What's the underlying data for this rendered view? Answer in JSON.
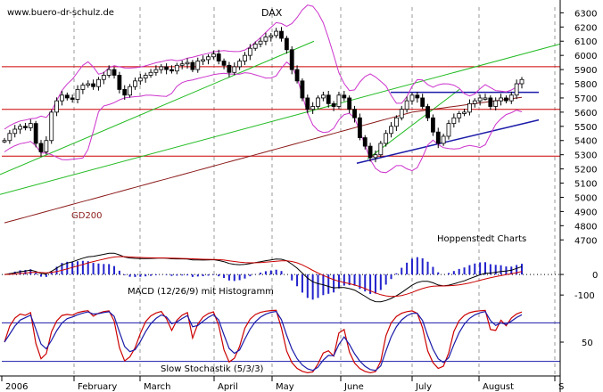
{
  "watermark": "www.buero-dr-schulz.de",
  "chart_data": {
    "type": "line",
    "title": "DAX",
    "source_label": "Hoppenstedt Charts",
    "ma_label": "GD200",
    "grid": true,
    "x_labels": [
      "2006",
      "February",
      "March",
      "April",
      "May",
      "June",
      "July",
      "August",
      "S"
    ],
    "price_panel": {
      "y_ticks": [
        4700,
        4800,
        4900,
        5000,
        5100,
        5200,
        5300,
        5400,
        5500,
        5600,
        5700,
        5800,
        5900,
        6000,
        6100,
        6200,
        6300
      ],
      "ylim": [
        4620,
        6340
      ],
      "horizontal_lines": [
        5920,
        5620,
        5290
      ],
      "series": [
        {
          "name": "Close",
          "color": "#000000",
          "values": [
            5400,
            5450,
            5480,
            5500,
            5490,
            5520,
            5380,
            5320,
            5400,
            5600,
            5680,
            5720,
            5700,
            5690,
            5760,
            5790,
            5800,
            5780,
            5830,
            5860,
            5900,
            5860,
            5760,
            5720,
            5780,
            5820,
            5840,
            5860,
            5880,
            5900,
            5920,
            5900,
            5890,
            5930,
            5940,
            5950,
            5900,
            5960,
            5970,
            5990,
            6010,
            5960,
            5930,
            5880,
            5920,
            5960,
            6000,
            6050,
            6080,
            6100,
            6130,
            6140,
            6170,
            6120,
            6040,
            5900,
            5820,
            5700,
            5620,
            5640,
            5700,
            5720,
            5660,
            5640,
            5720,
            5700,
            5620,
            5560,
            5420,
            5360,
            5280,
            5300,
            5380,
            5450,
            5500,
            5560,
            5620,
            5680,
            5720,
            5700,
            5640,
            5560,
            5460,
            5380,
            5430,
            5520,
            5560,
            5590,
            5600,
            5660,
            5680,
            5700,
            5700,
            5640,
            5680,
            5700,
            5680,
            5720,
            5800,
            5830
          ]
        },
        {
          "name": "GD200",
          "color": "#8b1a1a",
          "values": [
            4820,
            4830,
            4840,
            4850,
            4860,
            4870,
            4880,
            4890,
            4900,
            4910,
            4920,
            4930,
            4940,
            4950,
            4960,
            4970,
            4980,
            4990,
            5000,
            5010,
            5020,
            5030,
            5040,
            5050,
            5060,
            5070,
            5080,
            5090,
            5100,
            5110,
            5120,
            5130,
            5140,
            5150,
            5160,
            5170,
            5180,
            5190,
            5200,
            5210,
            5220,
            5230,
            5240,
            5250,
            5260,
            5270,
            5280,
            5290,
            5300,
            5310,
            5320,
            5330,
            5340,
            5350,
            5360,
            5370,
            5380,
            5390,
            5400,
            5410,
            5420,
            5430,
            5440,
            5450,
            5460,
            5470,
            5480,
            5490,
            5500,
            5510,
            5520,
            5530,
            5540,
            5550,
            5560,
            5570,
            5580,
            5590,
            5600,
            5605,
            5610,
            5615,
            5620,
            5625,
            5630,
            5635,
            5640,
            5645,
            5650,
            5655,
            5660,
            5665,
            5670,
            5675,
            5680,
            5685,
            5690,
            5695,
            5700,
            5705
          ]
        }
      ]
    },
    "macd_panel": {
      "label": "MACD (12/26/9) mit Histogramm",
      "y_ticks": [
        0,
        -100
      ],
      "ylim": [
        -160,
        100
      ]
    },
    "stochastic_panel": {
      "label": "Slow Stochastik (5/3/3)",
      "y_ticks": [
        50
      ],
      "ylim": [
        0,
        100
      ],
      "horizontal_lines": [
        80,
        20
      ]
    }
  }
}
